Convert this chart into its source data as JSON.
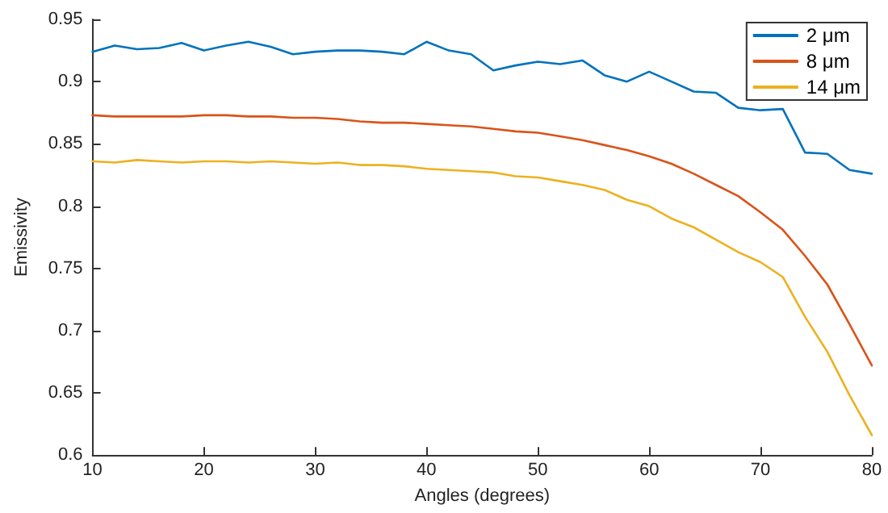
{
  "chart_data": {
    "type": "line",
    "xlabel": "Angles (degrees)",
    "ylabel": "Emissivity",
    "x": [
      10,
      12,
      14,
      16,
      18,
      20,
      22,
      24,
      26,
      28,
      30,
      32,
      34,
      36,
      38,
      40,
      42,
      44,
      46,
      48,
      50,
      52,
      54,
      56,
      58,
      60,
      62,
      64,
      66,
      68,
      70,
      72,
      74,
      76,
      78,
      80
    ],
    "series": [
      {
        "name": "2 μm",
        "color": "#0072bd",
        "values": [
          0.924,
          0.929,
          0.926,
          0.927,
          0.931,
          0.925,
          0.929,
          0.932,
          0.928,
          0.922,
          0.924,
          0.925,
          0.925,
          0.924,
          0.922,
          0.932,
          0.925,
          0.922,
          0.909,
          0.913,
          0.916,
          0.914,
          0.917,
          0.905,
          0.9,
          0.908,
          0.9,
          0.892,
          0.891,
          0.879,
          0.877,
          0.878,
          0.843,
          0.842,
          0.829,
          0.826
        ]
      },
      {
        "name": "8 μm",
        "color": "#d95319",
        "values": [
          0.873,
          0.872,
          0.872,
          0.872,
          0.872,
          0.873,
          0.873,
          0.872,
          0.872,
          0.871,
          0.871,
          0.87,
          0.868,
          0.867,
          0.867,
          0.866,
          0.865,
          0.864,
          0.862,
          0.86,
          0.859,
          0.856,
          0.853,
          0.849,
          0.845,
          0.84,
          0.834,
          0.826,
          0.817,
          0.808,
          0.795,
          0.781,
          0.76,
          0.737,
          0.705,
          0.672
        ]
      },
      {
        "name": "14 μm",
        "color": "#edb120",
        "values": [
          0.836,
          0.835,
          0.837,
          0.836,
          0.835,
          0.836,
          0.836,
          0.835,
          0.836,
          0.835,
          0.834,
          0.835,
          0.833,
          0.833,
          0.832,
          0.83,
          0.829,
          0.828,
          0.827,
          0.824,
          0.823,
          0.82,
          0.817,
          0.813,
          0.805,
          0.8,
          0.79,
          0.783,
          0.773,
          0.763,
          0.755,
          0.743,
          0.711,
          0.683,
          0.648,
          0.616
        ]
      }
    ],
    "xlim": [
      10,
      80
    ],
    "xticks": [
      10,
      20,
      30,
      40,
      50,
      60,
      70,
      80
    ],
    "ylim": [
      0.6,
      0.95
    ],
    "yticks": [
      0.6,
      0.65,
      0.7,
      0.75,
      0.8,
      0.85,
      0.9,
      0.95
    ],
    "grid": false,
    "legend": "top right",
    "marker": "none",
    "line_style": "solid"
  }
}
